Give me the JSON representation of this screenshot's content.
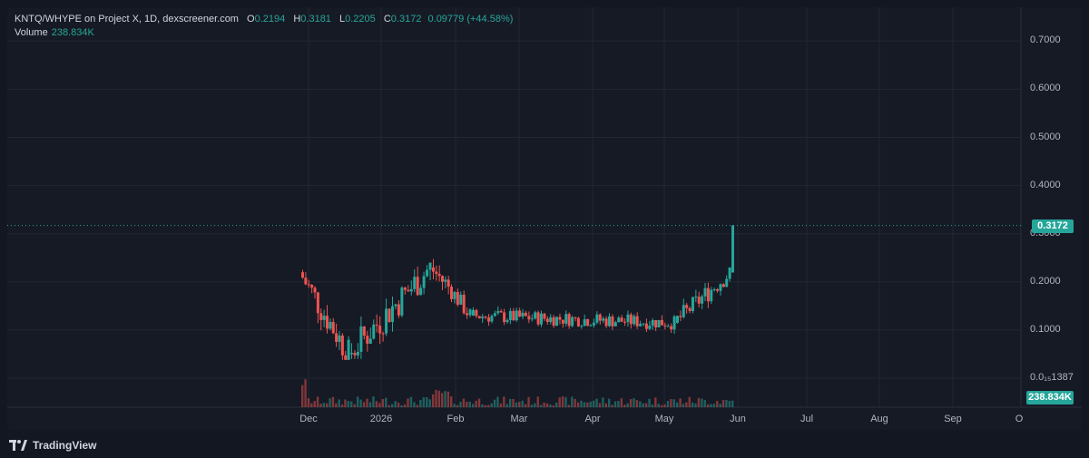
{
  "legend": {
    "title": "KNTQ/WHYPE on Project X, 1D, dexscreener.com",
    "open_key": "O",
    "open": "0.2194",
    "high_key": "H",
    "high": "0.3181",
    "low_key": "L",
    "low": "0.2205",
    "close_key": "C",
    "close": "0.3172",
    "change": "0.09779 (+44.58%)",
    "volume_label": "Volume",
    "volume_value": "238.834K"
  },
  "y_axis": {
    "ticks": [
      "0.7000",
      "0.6000",
      "0.5000",
      "0.4000",
      "0.3000",
      "0.2000",
      "0.1000",
      "0.0₁₅1387"
    ],
    "last_price_tag": "0.3172",
    "volume_tag": "238.834K"
  },
  "x_axis": {
    "ticks": [
      "Dec",
      "2026",
      "Feb",
      "Mar",
      "Apr",
      "May",
      "Jun",
      "Jul",
      "Aug",
      "Sep",
      "O"
    ]
  },
  "brand": {
    "name": "TradingView"
  },
  "colors": {
    "up": "#26a69a",
    "down": "#ef5350",
    "background": "#161a25",
    "grid": "#242733"
  },
  "chart_data": {
    "type": "candlestick",
    "symbol": "KNTQ/WHYPE",
    "interval": "1D",
    "y_range": [
      0,
      0.72
    ],
    "last_price": 0.3172,
    "x_ticks": [
      "Dec",
      "2026",
      "Feb",
      "Mar",
      "Apr",
      "May",
      "Jun",
      "Jul",
      "Aug",
      "Sep",
      "O"
    ],
    "ohlc_segments": [
      {
        "from": "Nov 28",
        "to": "Dec 20",
        "open": 0.22,
        "close": 0.05,
        "high": 0.225,
        "low": 0.038
      },
      {
        "from": "Dec 20",
        "to": "Jan 20",
        "open": 0.05,
        "close": 0.23,
        "high": 0.24,
        "low": 0.04
      },
      {
        "from": "Jan 20",
        "to": "Jan 29",
        "open": 0.23,
        "close": 0.19,
        "high": 0.3,
        "low": 0.15
      },
      {
        "from": "Jan 29",
        "to": "Feb 10",
        "open": 0.19,
        "close": 0.13,
        "high": 0.22,
        "low": 0.11
      },
      {
        "from": "Feb 10",
        "to": "Apr 30",
        "open": 0.13,
        "close": 0.115,
        "high": 0.175,
        "low": 0.09
      },
      {
        "from": "May 1",
        "to": "May 30",
        "open": 0.115,
        "close": 0.2194,
        "high": 0.23,
        "low": 0.11
      },
      {
        "from": "May 31",
        "to": "May 31",
        "open": 0.2194,
        "close": 0.3172,
        "high": 0.3181,
        "low": 0.2205
      }
    ],
    "volume_last": "238.834K"
  }
}
